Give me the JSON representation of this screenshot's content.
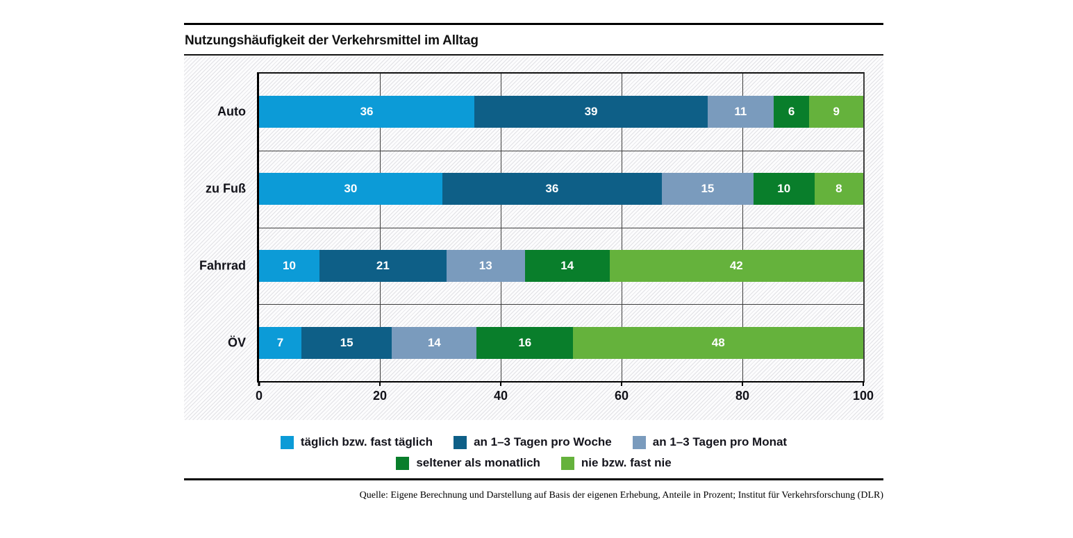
{
  "title": "Nutzungshäufigkeit der Verkehrsmittel im Alltag",
  "source": "Quelle: Eigene Berechnung und Darstellung auf Basis der eigenen Erhebung, Anteile in Prozent; Institut für Verkehrsforschung (DLR)",
  "chart_data": {
    "type": "bar",
    "orientation": "horizontal",
    "stacked": true,
    "title": "Nutzungshäufigkeit der Verkehrsmittel im Alltag",
    "categories": [
      "Auto",
      "zu Fuß",
      "Fahrrad",
      "ÖV"
    ],
    "series": [
      {
        "name": "täglich bzw. fast täglich",
        "color": "#0C9BD7",
        "values": [
          36,
          30,
          10,
          7
        ]
      },
      {
        "name": "an 1–3 Tagen pro Woche",
        "color": "#0E5F87",
        "values": [
          39,
          36,
          21,
          15
        ]
      },
      {
        "name": "an 1–3 Tagen pro Monat",
        "color": "#7A9BBD",
        "values": [
          11,
          15,
          13,
          14
        ]
      },
      {
        "name": "seltener als monatlich",
        "color": "#097E2B",
        "values": [
          6,
          10,
          14,
          16
        ]
      },
      {
        "name": "nie bzw. fast nie",
        "color": "#65B23C",
        "values": [
          9,
          8,
          42,
          48
        ]
      }
    ],
    "x_ticks": [
      0,
      20,
      40,
      60,
      80,
      100
    ],
    "xlim": [
      0,
      100
    ],
    "unit": "Prozent",
    "grid": true,
    "legend_position": "bottom",
    "legend_rows": [
      [
        0,
        1,
        2
      ],
      [
        3,
        4
      ]
    ],
    "background_pattern": "diagonal-hatch"
  }
}
